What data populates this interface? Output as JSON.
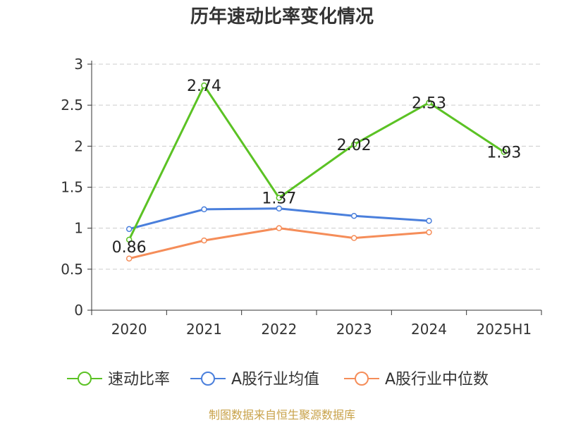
{
  "chart_data": {
    "type": "line",
    "title": "历年速动比率变化情况",
    "categories": [
      "2020",
      "2021",
      "2022",
      "2023",
      "2024",
      "2025H1"
    ],
    "ylim": [
      0,
      3
    ],
    "yticks": [
      "0",
      "0.5",
      "1",
      "1.5",
      "2",
      "2.5",
      "3"
    ],
    "ytick_values": [
      0,
      0.5,
      1,
      1.5,
      2,
      2.5,
      3
    ],
    "grid": true,
    "legend_position": "bottom",
    "series": [
      {
        "name": "速动比率",
        "color": "#5bc224",
        "values": [
          0.86,
          2.74,
          1.37,
          2.02,
          2.53,
          1.93
        ],
        "labels": [
          "0.86",
          "2.74",
          "1.37",
          "2.02",
          "2.53",
          "1.93"
        ],
        "show_labels": true
      },
      {
        "name": "A股行业均值",
        "color": "#4a7fdc",
        "values": [
          0.99,
          1.23,
          1.24,
          1.15,
          1.09,
          null
        ],
        "show_labels": false
      },
      {
        "name": "A股行业中位数",
        "color": "#f58d59",
        "values": [
          0.63,
          0.85,
          1.0,
          0.88,
          0.95,
          null
        ],
        "show_labels": false
      }
    ],
    "source": "制图数据来自恒生聚源数据库"
  }
}
